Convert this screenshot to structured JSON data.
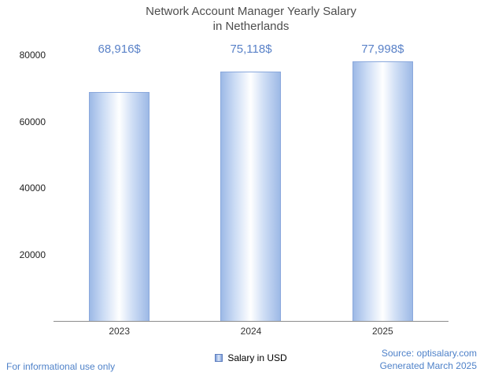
{
  "chart_data": {
    "type": "bar",
    "title": "Network Account Manager Yearly Salary in Netherlands",
    "title_lines": [
      "Network Account Manager Yearly Salary",
      "in Netherlands"
    ],
    "categories": [
      "2023",
      "2024",
      "2025"
    ],
    "values": [
      68916,
      75118,
      77998
    ],
    "value_labels": [
      "68,916$",
      "75,118$",
      "77,998$"
    ],
    "series": [
      {
        "name": "Salary in USD",
        "values": [
          68916,
          75118,
          77998
        ]
      }
    ],
    "xlabel": "",
    "ylabel": "",
    "ylim": [
      0,
      80000
    ],
    "yticks": [
      20000,
      40000,
      60000,
      80000
    ],
    "ytick_labels": [
      "20000",
      "40000",
      "60000",
      "80000"
    ],
    "grid": false,
    "legend_position": "bottom",
    "colors": {
      "bar_edge": "#8aa8dc",
      "bar_fill_edge": "#9db9e6",
      "bar_fill_center": "#ffffff",
      "value_label_blue": "#5a82c8",
      "title_gray": "#4d4d4d",
      "footer_blue": "#4f82c9",
      "axis_line": "#8c8c8c"
    }
  },
  "legend": {
    "label": "Salary in USD"
  },
  "footer": {
    "left": "For informational use only",
    "source": "Source: optisalary.com",
    "generated": "Generated March 2025"
  }
}
